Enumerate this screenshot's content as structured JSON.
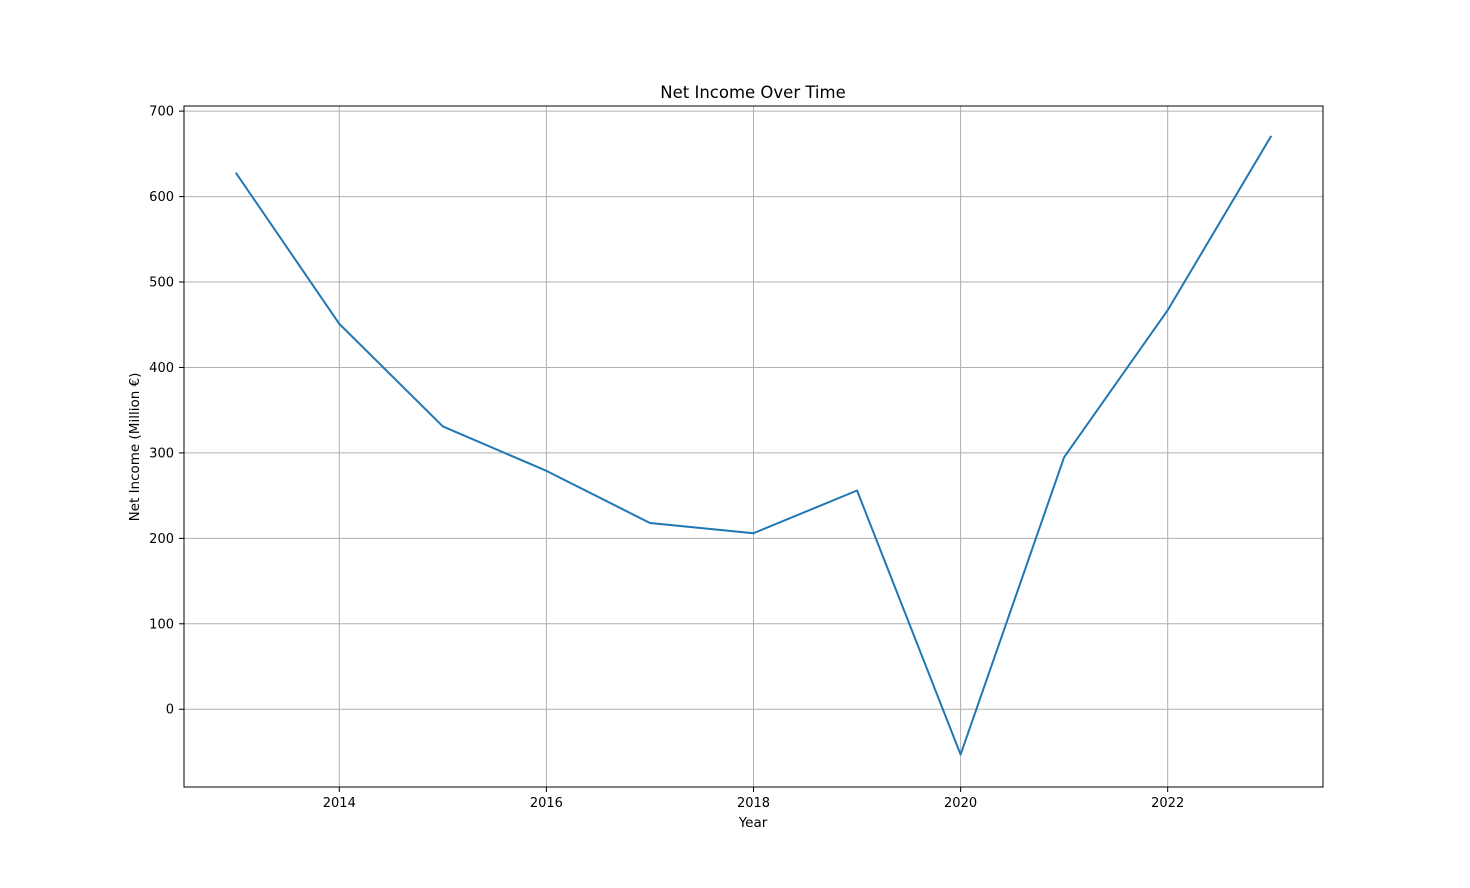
{
  "chart_data": {
    "type": "line",
    "title": "Net Income Over Time",
    "xlabel": "Year",
    "ylabel": "Net Income (Million €)",
    "x": [
      2013,
      2014,
      2015,
      2016,
      2017,
      2018,
      2019,
      2020,
      2021,
      2022,
      2023
    ],
    "series": [
      {
        "values": [
          628,
          451,
          331,
          279,
          218,
          206,
          256,
          -53,
          295,
          467,
          671
        ],
        "color": "#1f77b4"
      }
    ],
    "xlim": [
      2012.5,
      2023.5
    ],
    "ylim": [
      -91,
      706
    ],
    "xticks": [
      2014,
      2016,
      2018,
      2020,
      2022
    ],
    "yticks": [
      0,
      100,
      200,
      300,
      400,
      500,
      600,
      700
    ],
    "grid": true,
    "legend": "none"
  }
}
